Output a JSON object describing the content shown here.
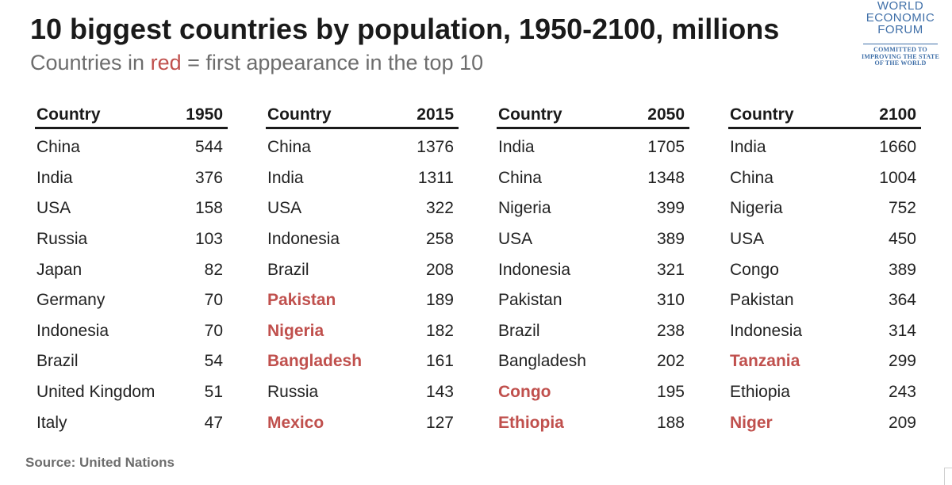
{
  "title": "10 biggest countries by population, 1950-2100, millions",
  "subtitle": {
    "prefix": "Countries in ",
    "highlight": "red",
    "suffix": " = first appearance in the top 10"
  },
  "logo": {
    "line1": "WORLD",
    "line2": "ECONOMIC",
    "line3": "FORUM",
    "tag1": "COMMITTED TO",
    "tag2": "IMPROVING THE STATE",
    "tag3": "OF THE WORLD"
  },
  "source": "Source: United Nations",
  "colors": {
    "new_entry": "#c0504d",
    "text": "#222222",
    "subtitle": "#6d6d6d"
  },
  "chart_data": {
    "type": "table",
    "title": "10 biggest countries by population, 1950-2100, millions",
    "tables": [
      {
        "country_header": "Country",
        "year": "1950",
        "rows": [
          {
            "country": "China",
            "value": "544",
            "new": false
          },
          {
            "country": "India",
            "value": "376",
            "new": false
          },
          {
            "country": "USA",
            "value": "158",
            "new": false
          },
          {
            "country": "Russia",
            "value": "103",
            "new": false
          },
          {
            "country": "Japan",
            "value": "82",
            "new": false
          },
          {
            "country": "Germany",
            "value": "70",
            "new": false
          },
          {
            "country": "Indonesia",
            "value": "70",
            "new": false
          },
          {
            "country": "Brazil",
            "value": "54",
            "new": false
          },
          {
            "country": "United Kingdom",
            "value": "51",
            "new": false
          },
          {
            "country": "Italy",
            "value": "47",
            "new": false
          }
        ]
      },
      {
        "country_header": "Country",
        "year": "2015",
        "rows": [
          {
            "country": "China",
            "value": "1376",
            "new": false
          },
          {
            "country": "India",
            "value": "1311",
            "new": false
          },
          {
            "country": "USA",
            "value": "322",
            "new": false
          },
          {
            "country": "Indonesia",
            "value": "258",
            "new": false
          },
          {
            "country": "Brazil",
            "value": "208",
            "new": false
          },
          {
            "country": "Pakistan",
            "value": "189",
            "new": true
          },
          {
            "country": "Nigeria",
            "value": "182",
            "new": true
          },
          {
            "country": "Bangladesh",
            "value": "161",
            "new": true
          },
          {
            "country": "Russia",
            "value": "143",
            "new": false
          },
          {
            "country": "Mexico",
            "value": "127",
            "new": true
          }
        ]
      },
      {
        "country_header": "Country",
        "year": "2050",
        "rows": [
          {
            "country": "India",
            "value": "1705",
            "new": false
          },
          {
            "country": "China",
            "value": "1348",
            "new": false
          },
          {
            "country": "Nigeria",
            "value": "399",
            "new": false
          },
          {
            "country": "USA",
            "value": "389",
            "new": false
          },
          {
            "country": "Indonesia",
            "value": "321",
            "new": false
          },
          {
            "country": "Pakistan",
            "value": "310",
            "new": false
          },
          {
            "country": "Brazil",
            "value": "238",
            "new": false
          },
          {
            "country": "Bangladesh",
            "value": "202",
            "new": false
          },
          {
            "country": "Congo",
            "value": "195",
            "new": true
          },
          {
            "country": "Ethiopia",
            "value": "188",
            "new": true
          }
        ]
      },
      {
        "country_header": "Country",
        "year": "2100",
        "rows": [
          {
            "country": "India",
            "value": "1660",
            "new": false
          },
          {
            "country": "China",
            "value": "1004",
            "new": false
          },
          {
            "country": "Nigeria",
            "value": "752",
            "new": false
          },
          {
            "country": "USA",
            "value": "450",
            "new": false
          },
          {
            "country": "Congo",
            "value": "389",
            "new": false
          },
          {
            "country": "Pakistan",
            "value": "364",
            "new": false
          },
          {
            "country": "Indonesia",
            "value": "314",
            "new": false
          },
          {
            "country": "Tanzania",
            "value": "299",
            "new": true
          },
          {
            "country": "Ethiopia",
            "value": "243",
            "new": false
          },
          {
            "country": "Niger",
            "value": "209",
            "new": true
          }
        ]
      }
    ]
  }
}
